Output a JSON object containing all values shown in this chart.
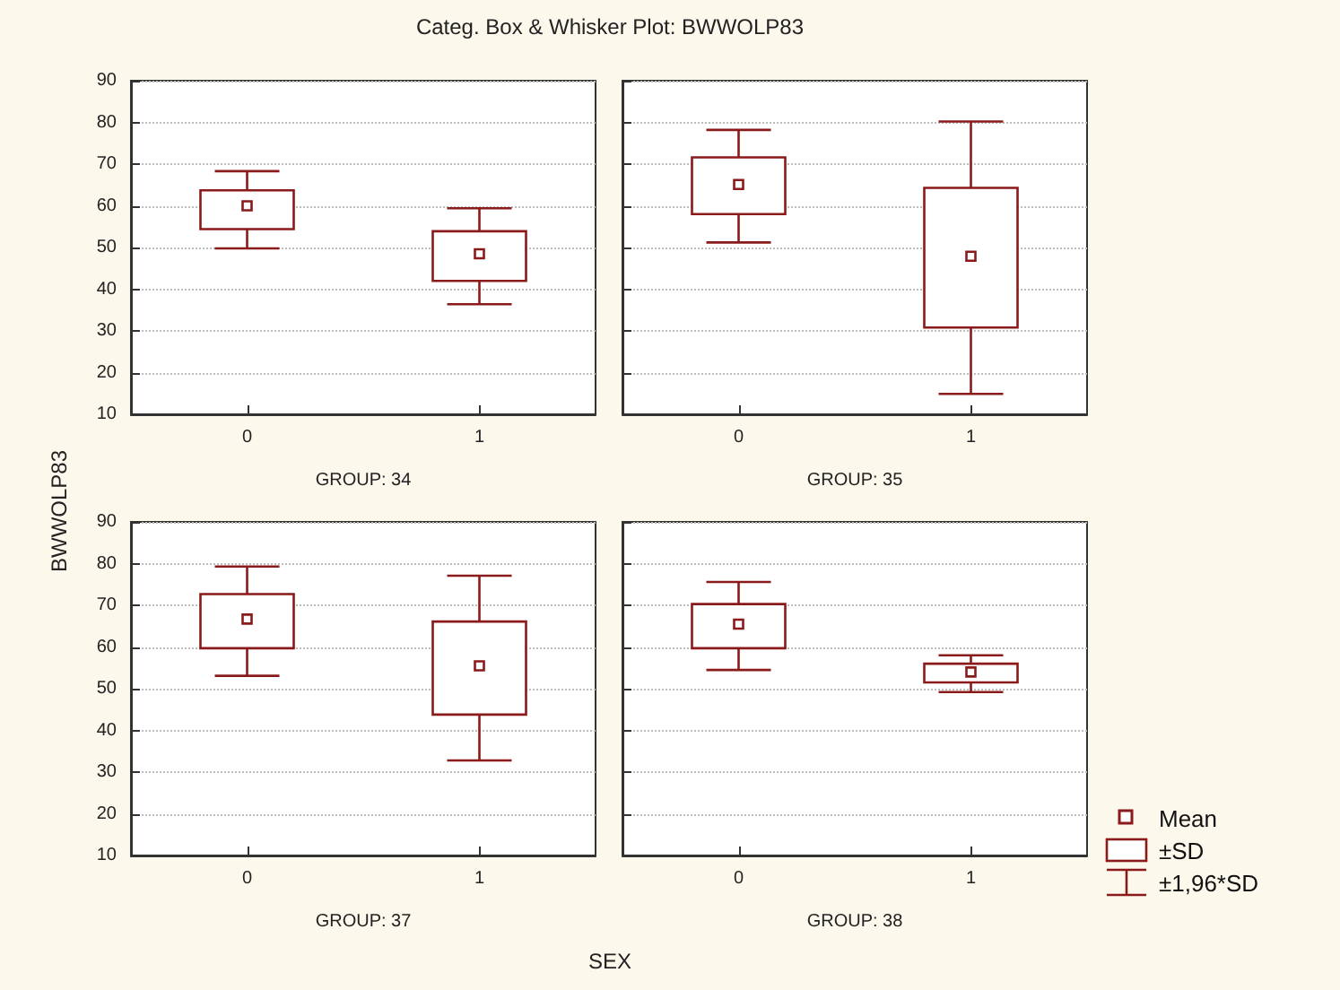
{
  "chart_data": [
    {
      "type": "box",
      "title": "Categ. Box & Whisker Plot: BWWOLP83",
      "ylabel": "BWWOLP83",
      "xlabel": "GROUP: 34",
      "annotations": [
        "SEX"
      ],
      "categories": [
        "0",
        "1"
      ],
      "color": "#8b1a1a",
      "boxes": [
        {
          "low": 49.8,
          "q1": 54.4,
          "median": 60.0,
          "q3": 63.7,
          "high": 68.3
        },
        {
          "low": 36.4,
          "q1": 42.0,
          "median": 48.5,
          "q3": 53.9,
          "high": 59.4
        }
      ],
      "ylim": [
        10,
        90
      ],
      "yticks": [
        10,
        20,
        30,
        40,
        50,
        60,
        70,
        80,
        90
      ],
      "grid": "y"
    },
    {
      "type": "box",
      "xlabel": "GROUP: 35",
      "categories": [
        "0",
        "1"
      ],
      "color": "#8b1a1a",
      "boxes": [
        {
          "low": 51.2,
          "q1": 58.0,
          "median": 65.1,
          "q3": 71.6,
          "high": 78.2
        },
        {
          "low": 14.9,
          "q1": 30.8,
          "median": 47.9,
          "q3": 64.3,
          "high": 80.2
        }
      ],
      "ylim": [
        10,
        90
      ],
      "yticks": [
        10,
        20,
        30,
        40,
        50,
        60,
        70,
        80,
        90
      ],
      "grid": "y",
      "tick_labels": "x"
    },
    {
      "type": "box",
      "xlabel": "GROUP: 37",
      "categories": [
        "0",
        "1"
      ],
      "color": "#8b1a1a",
      "boxes": [
        {
          "low": 53.1,
          "q1": 59.7,
          "median": 66.7,
          "q3": 72.7,
          "high": 79.3
        },
        {
          "low": 32.8,
          "q1": 43.8,
          "median": 55.5,
          "q3": 66.1,
          "high": 77.1
        }
      ],
      "ylim": [
        10,
        90
      ],
      "yticks": [
        10,
        20,
        30,
        40,
        50,
        60,
        70,
        80,
        90
      ],
      "grid": "y"
    },
    {
      "type": "box",
      "xlabel": "GROUP: 38",
      "annotations": [
        "Mean",
        "±SD",
        "±1,96*SD"
      ],
      "categories": [
        "0",
        "1"
      ],
      "color": "#8b1a1a",
      "boxes": [
        {
          "low": 54.5,
          "q1": 59.7,
          "median": 65.5,
          "q3": 70.3,
          "high": 75.6
        },
        {
          "low": 49.2,
          "q1": 51.5,
          "median": 54.0,
          "q3": 56.0,
          "high": 58.0
        }
      ],
      "ylim": [
        10,
        90
      ],
      "yticks": [
        10,
        20,
        30,
        40,
        50,
        60,
        70,
        80,
        90
      ],
      "grid": "y",
      "tick_labels": "x"
    }
  ]
}
